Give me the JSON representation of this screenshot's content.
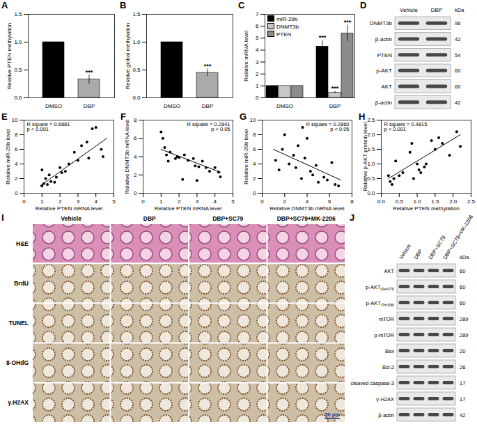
{
  "chart_data": [
    {
      "type": "bar",
      "title": "A",
      "categories": [
        "DMSO",
        "DBP"
      ],
      "values": [
        1.0,
        0.33
      ],
      "errors": [
        null,
        0.08
      ],
      "colors": [
        "#000000",
        "#aaaaaa"
      ],
      "y_label": "Relative PTEN methylation",
      "ylim": [
        0,
        1.5
      ],
      "yticks": [
        {
          "value": 0,
          "label": "0.0"
        },
        {
          "value": 0.5,
          "label": "0.5"
        },
        {
          "value": 1,
          "label": "1.0"
        },
        {
          "value": 1.5,
          "label": "1.5"
        }
      ],
      "annotations": [
        {
          "category": "DBP",
          "text": "***"
        }
      ]
    },
    {
      "type": "bar",
      "title": "B",
      "categories": [
        "DMSO",
        "DBP"
      ],
      "values": [
        1.0,
        0.45
      ],
      "errors": [
        null,
        0.07
      ],
      "colors": [
        "#000000",
        "#aaaaaa"
      ],
      "y_label": "Relative global methylation",
      "ylim": [
        0,
        1.5
      ],
      "yticks": [
        {
          "value": 0,
          "label": "0.0"
        },
        {
          "value": 0.5,
          "label": "0.5"
        },
        {
          "value": 1,
          "label": "1.0"
        },
        {
          "value": 1.5,
          "label": "1.5"
        }
      ],
      "annotations": [
        {
          "category": "DBP",
          "text": "***"
        }
      ]
    },
    {
      "type": "bar",
      "title": "C",
      "categories": [
        "DMSO",
        "DBP"
      ],
      "y_label": "Relative mRNA level",
      "ylim": [
        0,
        7
      ],
      "yticks": [
        0,
        1,
        2,
        3,
        4,
        5,
        6,
        7
      ],
      "legend": "top-left",
      "series": [
        {
          "name": "miR-29b",
          "color": "#000000",
          "values": [
            1,
            4.3
          ],
          "errors": [
            null,
            0.5
          ],
          "annotations": [
            null,
            "***"
          ]
        },
        {
          "name": "DNMT3b",
          "color": "#c8c8c8",
          "values": [
            1,
            0.45
          ],
          "errors": [
            null,
            0.1
          ],
          "annotations": [
            null,
            "***"
          ]
        },
        {
          "name": "PTEN",
          "color": "#8c8c8c",
          "values": [
            1,
            5.4
          ],
          "errors": [
            null,
            0.7
          ],
          "annotations": [
            null,
            "***"
          ]
        }
      ]
    },
    {
      "type": "scatter",
      "title": "E",
      "x_label": "Relative PTEN mRNA level",
      "y_label": "Relative miR-29b level",
      "xlim": [
        0,
        5
      ],
      "xticks": [
        0,
        1,
        2,
        3,
        4,
        5
      ],
      "ylim": [
        0,
        10
      ],
      "yticks": [
        0,
        2,
        4,
        6,
        8,
        10
      ],
      "annotations": [
        "R square = 0.6881",
        "p < 0.001"
      ],
      "x": [
        1.0,
        1.1,
        1.2,
        1.3,
        1.5,
        1.7,
        1.8,
        2.0,
        2.1,
        2.3,
        2.5,
        2.8,
        3.0,
        3.2,
        3.5,
        3.6,
        3.8,
        4.0,
        4.3,
        4.4,
        1.0,
        1.4
      ],
      "values": [
        1.0,
        1.3,
        2.0,
        1.2,
        1.6,
        1.5,
        2.2,
        3.5,
        2.8,
        3.0,
        4.0,
        5.6,
        4.5,
        6.5,
        7.0,
        4.8,
        8.8,
        9.0,
        6.0,
        5.0,
        3.2,
        2.5
      ],
      "trend_line": {
        "x": [
          0.9,
          4.6
        ],
        "y": [
          1.0,
          7.5
        ]
      }
    },
    {
      "type": "scatter",
      "title": "F",
      "x_label": "Relative PTEN mRNA level",
      "y_label": "Relative DNMT3b mRNA level",
      "xlim": [
        0,
        5
      ],
      "xticks": [
        0,
        1,
        2,
        3,
        4,
        5
      ],
      "ylim": [
        0,
        8
      ],
      "yticks": [
        0,
        2,
        4,
        6,
        8
      ],
      "annotations": [
        "R square = 0.2841",
        "p < 0.05"
      ],
      "x": [
        1.0,
        1.1,
        1.2,
        1.3,
        1.4,
        1.5,
        1.8,
        1.9,
        2.0,
        2.2,
        2.3,
        2.5,
        2.8,
        2.9,
        3.0,
        3.1,
        3.3,
        3.5,
        3.7,
        4.0,
        4.2,
        4.3
      ],
      "values": [
        6.7,
        6.0,
        5.0,
        4.2,
        3.5,
        4.5,
        3.8,
        4.0,
        3.9,
        1.5,
        4.2,
        3.6,
        3.8,
        3.0,
        1.4,
        2.9,
        3.5,
        2.8,
        2.4,
        2.8,
        2.3,
        1.8
      ],
      "trend_line": {
        "x": [
          1.0,
          4.3
        ],
        "y": [
          4.8,
          2.3
        ]
      }
    },
    {
      "type": "scatter",
      "title": "G",
      "x_label": "Relative DNMT3b mRNA level",
      "y_label": "Relative miR-29b level",
      "xlim": [
        0,
        8
      ],
      "xticks": [
        0,
        2,
        4,
        6,
        8
      ],
      "ylim": [
        0,
        10
      ],
      "yticks": [
        0,
        2,
        4,
        6,
        8,
        10
      ],
      "annotations": [
        "R square = 0.2860",
        "p < 0.05"
      ],
      "x": [
        1.2,
        1.5,
        1.8,
        2.0,
        2.4,
        2.8,
        3.0,
        3.2,
        3.5,
        3.6,
        3.8,
        4.0,
        4.3,
        4.5,
        4.8,
        5.0,
        5.5,
        5.8,
        6.2,
        6.5,
        6.8
      ],
      "values": [
        4.5,
        3.2,
        6.0,
        8.0,
        4.0,
        5.2,
        3.5,
        6.5,
        2.0,
        9.0,
        4.8,
        7.5,
        3.0,
        2.5,
        3.8,
        1.5,
        2.2,
        1.8,
        4.2,
        1.2,
        1.0
      ],
      "trend_line": {
        "x": [
          1.0,
          7.0
        ],
        "y": [
          6.0,
          1.8
        ]
      }
    },
    {
      "type": "scatter",
      "title": "H",
      "x_label": "Relative PTEN methylation",
      "y_label": "Relative p-AKT protein level",
      "xlim": [
        0,
        2.5
      ],
      "xticks": [
        {
          "value": 0,
          "label": "0.0"
        },
        {
          "value": 0.5,
          "label": "0.5"
        },
        {
          "value": 1,
          "label": "1.0"
        },
        {
          "value": 1.5,
          "label": "1.5"
        },
        {
          "value": 2,
          "label": "2.0"
        },
        {
          "value": 2.5,
          "label": "2.5"
        }
      ],
      "ylim": [
        0,
        2.5
      ],
      "yticks": [
        {
          "value": 0,
          "label": "0.0"
        },
        {
          "value": 0.5,
          "label": "0.5"
        },
        {
          "value": 1,
          "label": "1.0"
        },
        {
          "value": 1.5,
          "label": "1.5"
        },
        {
          "value": 2,
          "label": "2.0"
        },
        {
          "value": 2.5,
          "label": "2.5"
        }
      ],
      "annotations": [
        "R square = 0.4815",
        "p < 0.001"
      ],
      "x": [
        0.2,
        0.25,
        0.3,
        0.35,
        0.4,
        0.5,
        0.6,
        0.8,
        0.85,
        0.9,
        1.0,
        1.05,
        1.1,
        1.2,
        1.25,
        1.4,
        1.5,
        1.6,
        1.7,
        1.9,
        2.1,
        2.2
      ],
      "values": [
        0.6,
        0.4,
        0.3,
        0.5,
        1.1,
        0.6,
        0.7,
        1.4,
        1.7,
        0.5,
        1.0,
        0.8,
        0.7,
        0.9,
        1.0,
        1.8,
        1.5,
        1.9,
        1.7,
        1.3,
        2.1,
        1.6
      ],
      "trend_line": {
        "x": [
          0.2,
          2.2
        ],
        "y": [
          0.5,
          2.0
        ]
      }
    }
  ],
  "blots": [
    {
      "title": "D",
      "columns": [
        "Vehicle",
        "DBP"
      ],
      "unit": "kDa",
      "rows": [
        {
          "label": "DNMT3b",
          "kda": 96
        },
        {
          "label": "β-actin",
          "kda": 42
        },
        {
          "label": "PTEN",
          "kda": 54
        },
        {
          "label": "p-AKT",
          "kda": 60
        },
        {
          "label": "AKT",
          "kda": 60
        },
        {
          "label": "β-actin",
          "kda": 42
        }
      ]
    },
    {
      "title": "J",
      "columns": [
        "Vehicle",
        "DBP",
        "DBP+SC79",
        "DBP+SC79+MK-2206"
      ],
      "unit": "kDa",
      "rows": [
        {
          "label": "AKT",
          "kda": 60
        },
        {
          "label": "p-AKT",
          "sub": "(Ser473)",
          "kda": 60
        },
        {
          "label": "p-AKT",
          "sub": "(Thr308)",
          "kda": 60
        },
        {
          "label": "mTOR",
          "kda": 289
        },
        {
          "label": "p-mTOR",
          "kda": 289
        },
        {
          "label": "Bax",
          "kda": 20
        },
        {
          "label": "Bcl-2",
          "kda": 26
        },
        {
          "label": "cleaved caspase-3",
          "kda": 17
        },
        {
          "label": "γ-H2AX",
          "kda": 17
        },
        {
          "label": "β-actin",
          "kda": 42
        }
      ]
    }
  ],
  "micrographs": {
    "title": "I",
    "columns": [
      "Vehicle",
      "DBP",
      "DBP+SC79",
      "DBP+SC79+MK-2206"
    ],
    "rows": [
      "H&E",
      "BrdU",
      "TUNEL",
      "8-OHdG",
      "γ.H2AX"
    ],
    "scale_bar": "50 μm"
  }
}
